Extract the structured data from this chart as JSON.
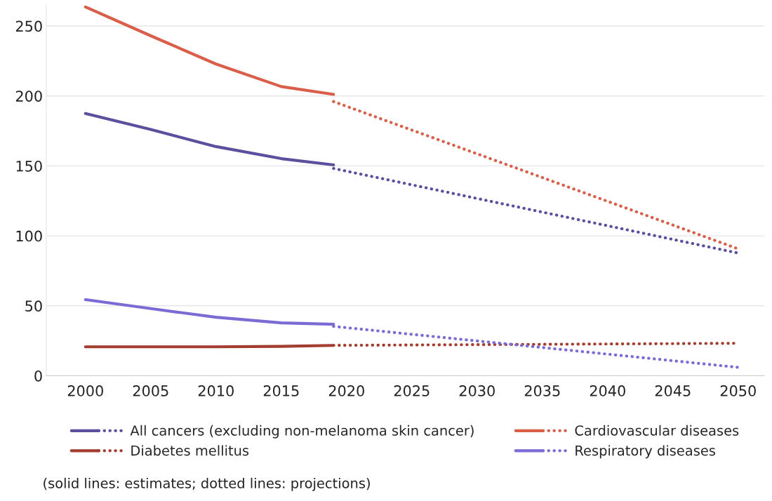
{
  "chart_data": {
    "type": "line",
    "xlim": [
      1997,
      2052
    ],
    "xticks": [
      2000,
      2005,
      2010,
      2015,
      2020,
      2025,
      2030,
      2035,
      2040,
      2045,
      2050
    ],
    "ylim": [
      0,
      265
    ],
    "yticks": [
      0,
      50,
      100,
      150,
      200,
      250
    ],
    "grid": "y",
    "legend": "bottom",
    "marker": "none",
    "series": [
      {
        "name": "All cancers (excluding non-melanoma skin cancer)",
        "color": "#5b4f9e",
        "line_style": "solid",
        "x": [
          2000,
          2005,
          2010,
          2015,
          2019
        ],
        "values": [
          187.5,
          176,
          163.8,
          155.2,
          150.7
        ]
      },
      {
        "color": "#5b4f9e",
        "line_style": "dotted",
        "x": [
          2019,
          2050
        ],
        "values": [
          148.2,
          87.7
        ]
      },
      {
        "name": "Cardiovascular diseases",
        "color": "#d95f4b",
        "line_style": "solid",
        "x": [
          2000,
          2005,
          2010,
          2015,
          2019
        ],
        "values": [
          263.6,
          243,
          222.8,
          206.7,
          201.1
        ]
      },
      {
        "color": "#d95f4b",
        "line_style": "dotted",
        "x": [
          2019,
          2050
        ],
        "values": [
          196,
          90.7
        ]
      },
      {
        "name": "Diabetes mellitus",
        "color": "#a33d30",
        "line_style": "solid",
        "x": [
          2000,
          2005,
          2010,
          2015,
          2019
        ],
        "values": [
          20.7,
          20.7,
          20.7,
          21,
          21.7
        ]
      },
      {
        "color": "#a33d30",
        "line_style": "dotted",
        "x": [
          2019,
          2050
        ],
        "values": [
          21.7,
          23.2
        ]
      },
      {
        "name": "Respiratory diseases",
        "color": "#7a6cd4",
        "line_style": "solid",
        "x": [
          2000,
          2005,
          2010,
          2015,
          2019
        ],
        "values": [
          54.4,
          48,
          41.8,
          37.8,
          36.8
        ]
      },
      {
        "color": "#7a6cd4",
        "line_style": "dotted",
        "x": [
          2019,
          2050
        ],
        "values": [
          35.3,
          6
        ]
      }
    ],
    "annotations": [
      "(solid lines: estimates; dotted lines: projections)"
    ]
  }
}
